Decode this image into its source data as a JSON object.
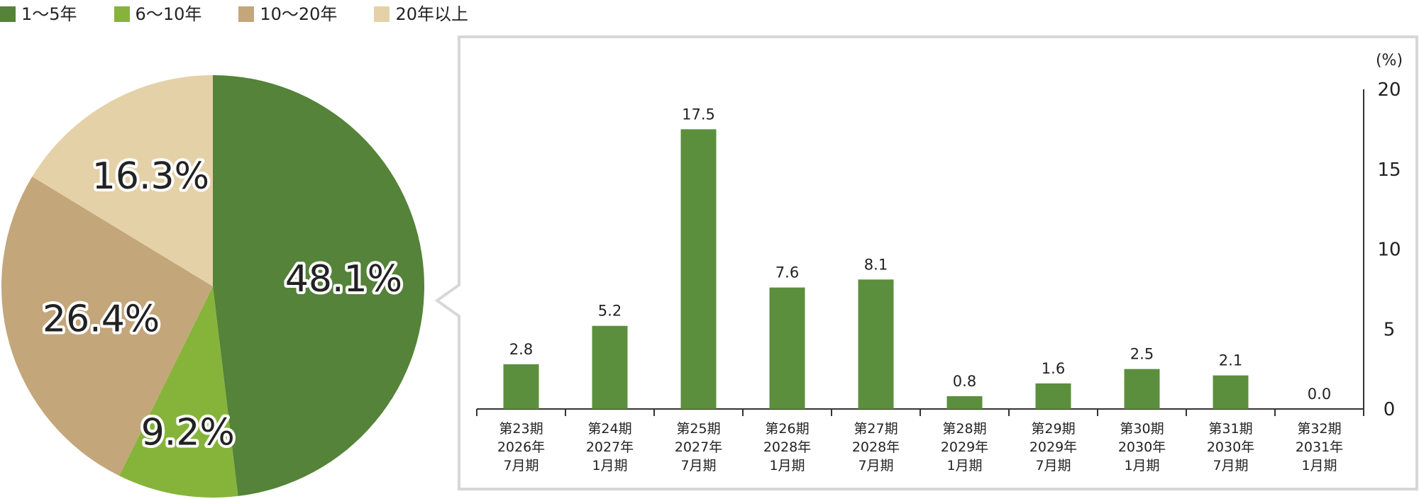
{
  "colors": {
    "series1": "#548339",
    "series2": "#86b43a",
    "series3": "#c4a67b",
    "series4": "#e5d1a7",
    "bar": "#5b8f3d",
    "frame": "#d7d7d7",
    "axis": "#333333"
  },
  "legend": {
    "items": [
      {
        "label": "1〜5年",
        "color": "#548339"
      },
      {
        "label": "6〜10年",
        "color": "#86b43a"
      },
      {
        "label": "10〜20年",
        "color": "#c4a67b"
      },
      {
        "label": "20年以上",
        "color": "#e5d1a7"
      }
    ]
  },
  "chart_data": [
    {
      "type": "pie",
      "slices": [
        {
          "label": "1〜5年",
          "value": 48.1,
          "display": "48.1%"
        },
        {
          "label": "6〜10年",
          "value": 9.2,
          "display": "9.2%"
        },
        {
          "label": "10〜20年",
          "value": 26.4,
          "display": "26.4%"
        },
        {
          "label": "20年以上",
          "value": 16.3,
          "display": "16.3%"
        }
      ]
    },
    {
      "type": "bar",
      "unit": "(%)",
      "ylim": [
        0,
        20
      ],
      "yticks": [
        0,
        5,
        10,
        15,
        20
      ],
      "y_axis_position": "right",
      "categories": [
        [
          "第23期",
          "2026年",
          "7月期"
        ],
        [
          "第24期",
          "2027年",
          "1月期"
        ],
        [
          "第25期",
          "2027年",
          "7月期"
        ],
        [
          "第26期",
          "2028年",
          "1月期"
        ],
        [
          "第27期",
          "2028年",
          "7月期"
        ],
        [
          "第28期",
          "2029年",
          "1月期"
        ],
        [
          "第29期",
          "2029年",
          "7月期"
        ],
        [
          "第30期",
          "2030年",
          "1月期"
        ],
        [
          "第31期",
          "2030年",
          "7月期"
        ],
        [
          "第32期",
          "2031年",
          "1月期"
        ]
      ],
      "values": [
        2.8,
        5.2,
        17.5,
        7.6,
        8.1,
        0.8,
        1.6,
        2.5,
        2.1,
        0.0
      ],
      "value_labels": [
        "2.8",
        "5.2",
        "17.5",
        "7.6",
        "8.1",
        "0.8",
        "1.6",
        "2.5",
        "2.1",
        "0.0"
      ]
    }
  ]
}
